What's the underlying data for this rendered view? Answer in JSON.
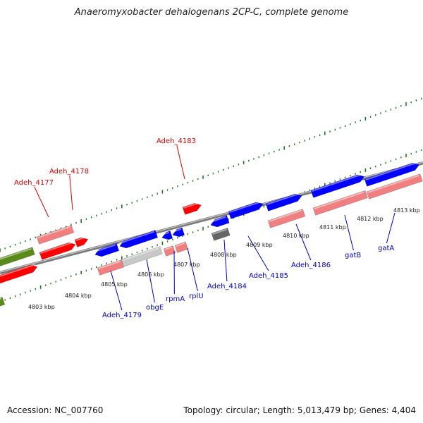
{
  "title": "Anaeromyxobacter dehalogenans 2CP-C, complete genome",
  "footer": {
    "accession": "Accession: NC_007760",
    "summary": "Topology: circular; Length: 5,013,479 bp; Genes: 4,404"
  },
  "colors": {
    "forward_label": "#dd0000",
    "reverse_label": "#0000cc",
    "red_gene": "#ff0000",
    "pink_gene": "#f08080",
    "blue_gene": "#0000ff",
    "olive_gene": "#5a8a1a",
    "gray_gene": "#666666",
    "lightgray_gene": "#c8c8c8",
    "tick": "#1a7a1a",
    "backbone": "#7a7a7a"
  },
  "kbp_labels": [
    "4803 kbp",
    "4804 kbp",
    "4805 kbp",
    "4806 kbp",
    "4807 kbp",
    "4808 kbp",
    "4809 kbp",
    "4810 kbp",
    "4811 kbp",
    "4812 kbp",
    "4813 kbp"
  ],
  "forward_labels": [
    "Adeh_4177",
    "Adeh_4178",
    "Adeh_4183"
  ],
  "reverse_labels": [
    "Adeh_4179",
    "obgE",
    "rpmA",
    "rplU",
    "Adeh_4184",
    "Adeh_4185",
    "Adeh_4186",
    "gatB",
    "gatA"
  ]
}
